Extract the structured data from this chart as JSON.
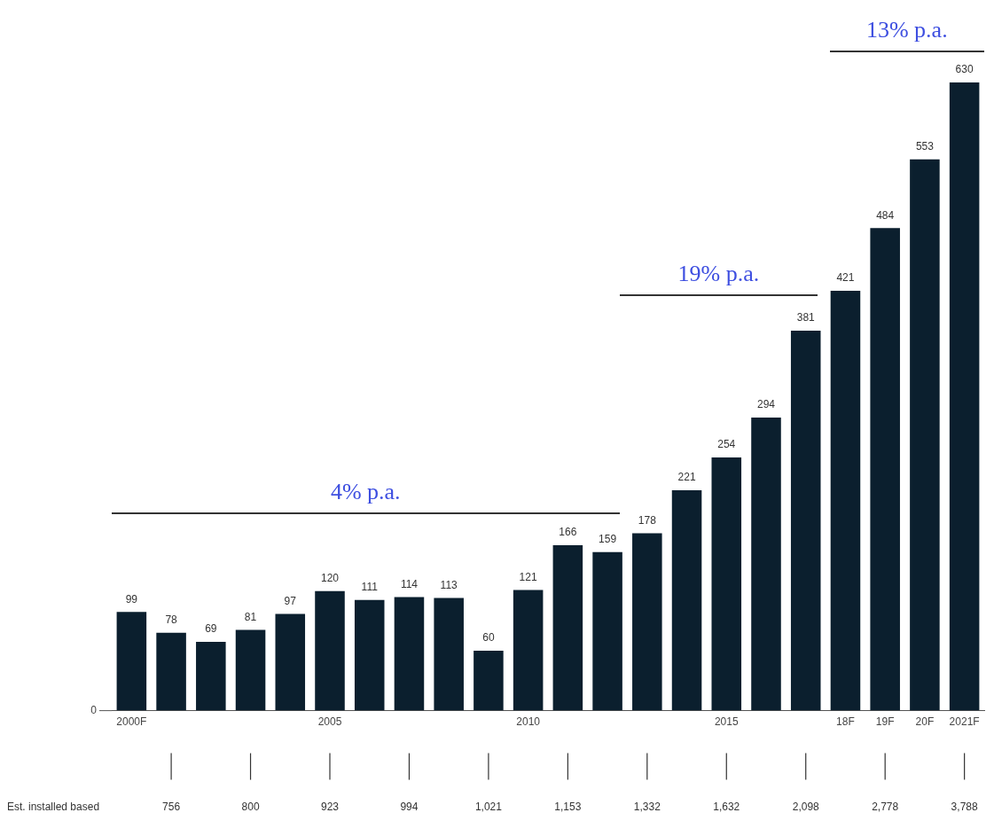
{
  "chart_data": {
    "type": "bar",
    "categories": [
      "2000F",
      null,
      null,
      null,
      null,
      "2005",
      null,
      null,
      null,
      null,
      "2010",
      null,
      null,
      null,
      null,
      "2015",
      null,
      null,
      "18F",
      "19F",
      "20F",
      "2021F"
    ],
    "values": [
      99,
      78,
      69,
      81,
      97,
      120,
      111,
      114,
      113,
      60,
      121,
      166,
      159,
      178,
      221,
      254,
      294,
      381,
      421,
      484,
      553,
      630
    ],
    "color": "#0b1f2e",
    "data_labels": true,
    "grid": false,
    "legend": false,
    "annotations": [
      "4% p.a.",
      "19% p.a.",
      "13% p.a.",
      "0",
      "Est. installed based",
      "756",
      "800",
      "923",
      "994",
      "1,021",
      "1,153",
      "1,332",
      "1,632",
      "2,098",
      "2,778",
      "3,788"
    ]
  }
}
